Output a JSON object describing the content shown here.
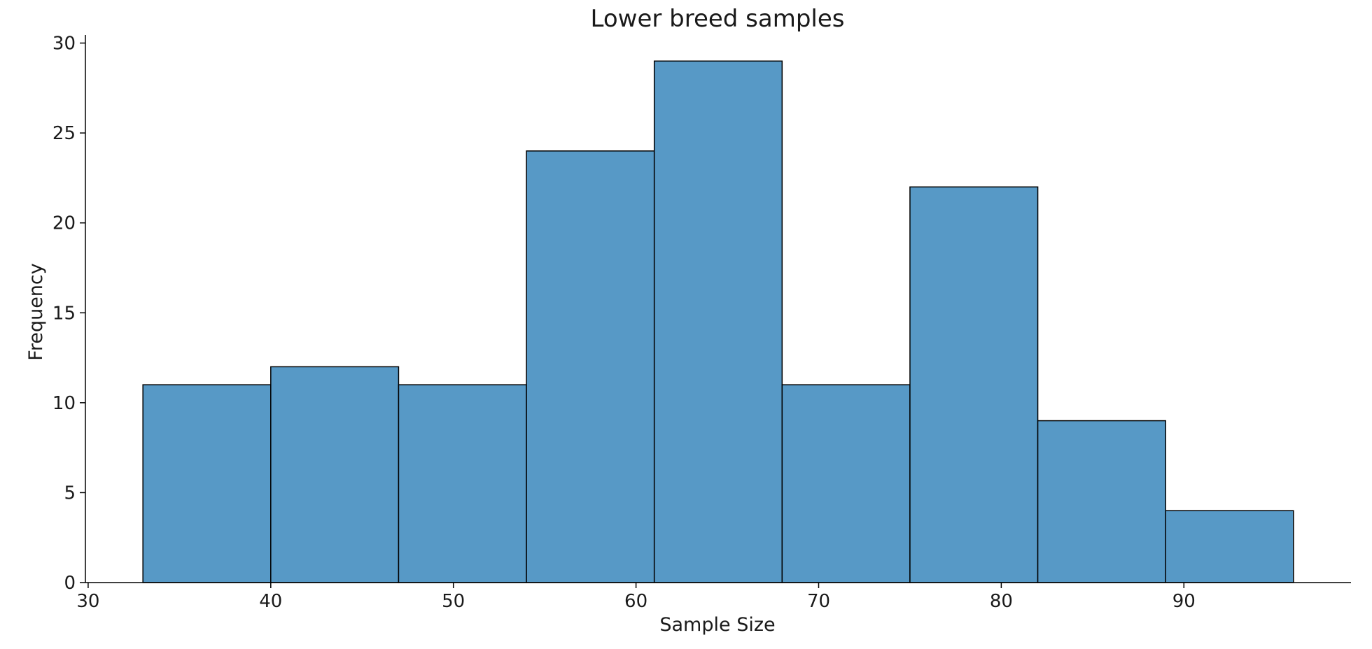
{
  "chart_data": {
    "type": "bar",
    "title": "Lower breed samples",
    "xlabel": "Sample Size",
    "ylabel": "Frequency",
    "bins": [
      {
        "start": 33,
        "end": 40,
        "value": 11
      },
      {
        "start": 40,
        "end": 47,
        "value": 12
      },
      {
        "start": 47,
        "end": 54,
        "value": 11
      },
      {
        "start": 54,
        "end": 61,
        "value": 24
      },
      {
        "start": 61,
        "end": 68,
        "value": 29
      },
      {
        "start": 68,
        "end": 75,
        "value": 11
      },
      {
        "start": 75,
        "end": 82,
        "value": 22
      },
      {
        "start": 82,
        "end": 89,
        "value": 9
      },
      {
        "start": 89,
        "end": 96,
        "value": 4
      }
    ],
    "xlim": [
      29.85,
      99.15
    ],
    "ylim": [
      0,
      30.45
    ],
    "xticks": [
      30,
      40,
      50,
      60,
      70,
      80,
      90
    ],
    "yticks": [
      0,
      5,
      10,
      15,
      20,
      25,
      30
    ],
    "grid": false,
    "legend": "none",
    "colors": {
      "bar_fill": "#5799c6",
      "bar_edge": "#000000",
      "text": "#1a1a1a"
    }
  }
}
